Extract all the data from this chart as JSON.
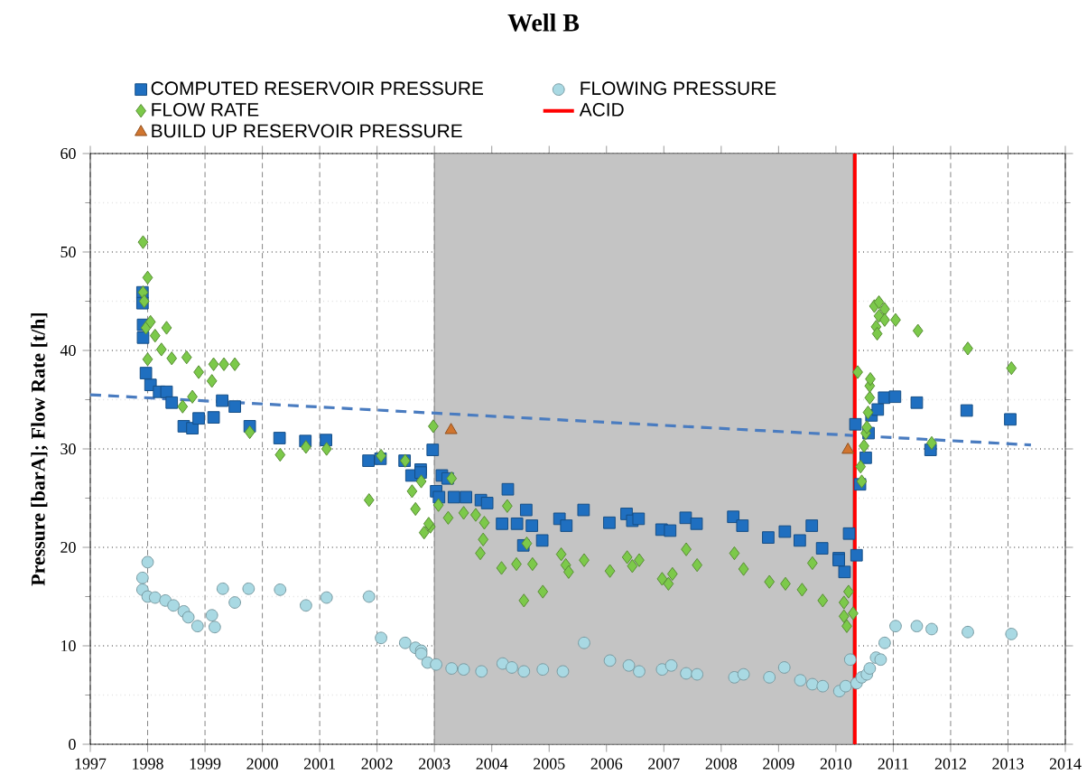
{
  "chart_data": {
    "type": "scatter",
    "title": "Well B",
    "ylabel": "Pressure [barA]; Flow Rate [t/h]",
    "xlim": [
      1997,
      2014
    ],
    "xticks": [
      1997,
      1998,
      1999,
      2000,
      2001,
      2002,
      2003,
      2004,
      2005,
      2006,
      2007,
      2008,
      2009,
      2010,
      2011,
      2012,
      2013,
      2014
    ],
    "ylim": [
      0,
      60
    ],
    "yticks": [
      0,
      10,
      20,
      30,
      40,
      50,
      60
    ],
    "grid": true,
    "legend": "top",
    "bands": [
      {
        "axis": "x",
        "from": 2003,
        "to": 2010.3,
        "color": "#c4c4c4"
      }
    ],
    "ref_lines": [
      {
        "axis": "x",
        "value": 2010.33,
        "label": "ACID",
        "color": "#ff0000"
      }
    ],
    "series": [
      {
        "name": "COMPUTED RESERVOIR PRESSURE",
        "color": "#1f6fc0",
        "marker": "square",
        "x": [
          1997.91,
          1997.91,
          1997.92,
          1997.92,
          1997.97,
          1998.05,
          1998.2,
          1998.33,
          1998.42,
          1998.63,
          1998.78,
          1998.89,
          1999.15,
          1999.3,
          1999.52,
          1999.78,
          2000.3,
          2000.75,
          2001.11,
          2001.85,
          2002.06,
          2002.48,
          2002.6,
          2002.76,
          2002.97,
          2002.76,
          2003.03,
          2003.13,
          2003.23,
          2003.08,
          2003.34,
          2003.55,
          2003.81,
          2003.92,
          2004.18,
          2004.28,
          2004.44,
          2004.6,
          2004.7,
          2004.55,
          2004.88,
          2005.18,
          2005.3,
          2005.6,
          2006.05,
          2006.35,
          2006.45,
          2006.56,
          2006.96,
          2007.11,
          2007.38,
          2007.57,
          2008.21,
          2008.37,
          2008.82,
          2009.11,
          2009.37,
          2009.58,
          2009.76,
          2010.05,
          2010.05,
          2010.15,
          2010.23,
          2010.36,
          2010.34,
          2010.42,
          2010.52,
          2010.57,
          2010.62,
          2010.73,
          2010.84,
          2011.03,
          2011.41,
          2011.65,
          2012.28,
          2013.04
        ],
        "values": [
          45.9,
          44.8,
          42.6,
          41.3,
          37.7,
          36.5,
          35.8,
          35.8,
          34.7,
          32.3,
          32.1,
          33.1,
          33.2,
          34.9,
          34.3,
          32.3,
          31.1,
          30.8,
          30.9,
          28.8,
          29.0,
          28.8,
          27.3,
          27.9,
          29.9,
          27.6,
          25.7,
          27.3,
          27.0,
          25.1,
          25.1,
          25.1,
          24.8,
          24.5,
          22.4,
          25.9,
          22.4,
          23.8,
          22.2,
          20.2,
          20.7,
          22.9,
          22.2,
          23.8,
          22.5,
          23.4,
          22.7,
          22.9,
          21.8,
          21.7,
          23.0,
          22.4,
          23.1,
          22.2,
          21.0,
          21.6,
          20.7,
          22.2,
          19.9,
          18.9,
          18.7,
          17.5,
          21.4,
          19.2,
          32.5,
          26.4,
          29.1,
          31.6,
          33.4,
          34.0,
          35.2,
          35.3,
          34.7,
          29.9,
          33.9,
          33.0
        ]
      },
      {
        "name": "FLOWING PRESSURE",
        "color": "#a9d9e3",
        "marker": "circle",
        "x": [
          1998.0,
          1997.91,
          1997.91,
          1998.0,
          1998.13,
          1998.31,
          1998.45,
          1998.63,
          1998.71,
          1998.87,
          1999.12,
          1999.17,
          1999.31,
          1999.52,
          1999.76,
          2000.31,
          2000.76,
          2001.12,
          2001.86,
          2002.07,
          2002.49,
          2002.67,
          2002.77,
          2002.77,
          2002.88,
          2003.03,
          2003.3,
          2003.51,
          2003.82,
          2004.19,
          2004.35,
          2004.56,
          2004.89,
          2005.24,
          2005.61,
          2006.06,
          2006.39,
          2006.57,
          2006.97,
          2007.13,
          2007.39,
          2007.58,
          2008.23,
          2008.39,
          2008.84,
          2009.1,
          2009.38,
          2009.59,
          2009.77,
          2010.06,
          2010.17,
          2010.25,
          2010.36,
          2010.45,
          2010.54,
          2010.59,
          2010.7,
          2010.78,
          2010.85,
          2011.04,
          2011.41,
          2011.67,
          2012.3,
          2013.06
        ],
        "values": [
          18.5,
          16.9,
          15.7,
          15.0,
          14.9,
          14.6,
          14.1,
          13.5,
          12.9,
          12.0,
          13.1,
          11.9,
          15.8,
          14.4,
          15.8,
          15.7,
          14.1,
          14.9,
          15.0,
          10.8,
          10.3,
          9.8,
          9.5,
          9.2,
          8.3,
          8.1,
          7.7,
          7.6,
          7.4,
          8.2,
          7.8,
          7.4,
          7.6,
          7.4,
          10.3,
          8.5,
          8.0,
          7.4,
          7.6,
          8.0,
          7.2,
          7.1,
          6.8,
          7.1,
          6.8,
          7.8,
          6.5,
          6.1,
          5.9,
          5.4,
          5.9,
          8.6,
          6.2,
          6.8,
          7.1,
          7.7,
          8.8,
          8.6,
          10.3,
          12.0,
          12.0,
          11.7,
          11.4,
          11.2
        ]
      },
      {
        "name": "FLOW RATE",
        "color": "#7cc94a",
        "marker": "diamond",
        "x": [
          1997.92,
          1998.0,
          1997.92,
          1997.94,
          1997.97,
          1998.05,
          1998.13,
          1998.33,
          1998.24,
          1998.42,
          1998.68,
          1998.89,
          1999.15,
          1999.33,
          1999.52,
          1999.12,
          1998.78,
          1998.61,
          1998.0,
          1999.78,
          2000.31,
          2000.76,
          2001.12,
          2001.86,
          2002.07,
          2002.49,
          2002.61,
          2002.67,
          2002.77,
          2002.82,
          2002.93,
          2002.98,
          2002.9,
          2003.07,
          2003.24,
          2003.3,
          2003.51,
          2003.72,
          2003.8,
          2003.85,
          2003.87,
          2004.17,
          2004.27,
          2004.43,
          2004.56,
          2004.61,
          2004.71,
          2004.89,
          2005.21,
          2005.29,
          2005.34,
          2005.61,
          2006.06,
          2006.36,
          2006.45,
          2006.57,
          2006.97,
          2007.08,
          2007.15,
          2007.39,
          2007.58,
          2008.23,
          2008.39,
          2008.84,
          2009.12,
          2009.41,
          2009.59,
          2009.77,
          2010.14,
          2010.22,
          2010.14,
          2010.19,
          2010.3,
          2010.38,
          2010.43,
          2010.45,
          2010.49,
          2010.52,
          2010.54,
          2010.56,
          2010.59,
          2010.59,
          2010.6,
          2010.67,
          2010.75,
          2010.85,
          2010.75,
          2010.7,
          2010.72,
          2010.85,
          2011.04,
          2011.43,
          2011.67,
          2012.3,
          2013.06
        ],
        "values": [
          51.0,
          47.4,
          45.9,
          45.0,
          42.3,
          42.9,
          41.5,
          42.3,
          40.1,
          39.2,
          39.3,
          37.8,
          38.6,
          38.6,
          38.6,
          36.9,
          35.3,
          34.3,
          39.1,
          31.7,
          29.4,
          30.2,
          30.0,
          24.8,
          29.3,
          28.8,
          25.7,
          23.9,
          26.7,
          21.5,
          22.1,
          32.3,
          22.4,
          24.3,
          23.0,
          27.0,
          23.5,
          23.3,
          19.4,
          20.8,
          22.5,
          17.9,
          24.2,
          18.3,
          14.6,
          20.4,
          18.3,
          15.5,
          19.3,
          18.2,
          17.5,
          18.7,
          17.6,
          19.0,
          18.1,
          18.7,
          16.8,
          16.3,
          17.3,
          19.8,
          18.2,
          19.4,
          17.8,
          16.5,
          16.3,
          15.7,
          18.4,
          14.6,
          14.4,
          15.5,
          13.0,
          12.0,
          13.3,
          37.8,
          28.2,
          26.7,
          30.3,
          31.6,
          32.2,
          33.7,
          35.2,
          36.4,
          37.1,
          44.5,
          44.9,
          44.2,
          43.5,
          42.4,
          41.7,
          43.1,
          43.1,
          42.0,
          30.6,
          40.2,
          38.2
        ]
      },
      {
        "name": "BUILD UP RESERVOIR PRESSURE",
        "color": "#d0752f",
        "marker": "triangle",
        "x": [
          2003.29,
          2010.21
        ],
        "values": [
          31.9,
          29.9
        ]
      },
      {
        "type": "line",
        "color": "#4a7cc0",
        "line_style": "dashed",
        "marker": "none",
        "x": [
          1997,
          2013.4
        ],
        "values": [
          35.5,
          30.4
        ]
      }
    ]
  }
}
